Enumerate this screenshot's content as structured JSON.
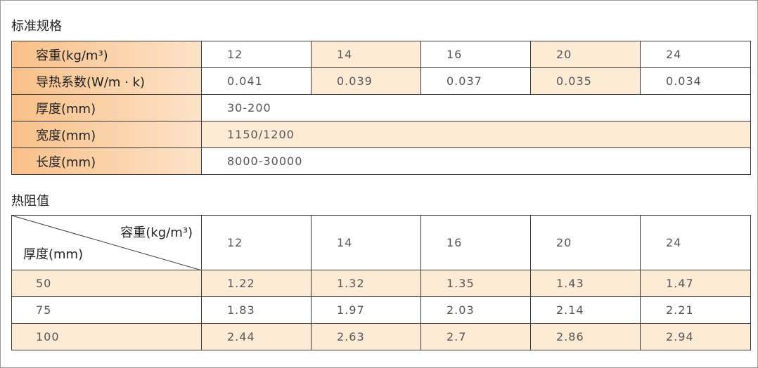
{
  "spec": {
    "title": "标准规格",
    "rows": [
      {
        "label": "容重(kg/m³)",
        "values": [
          "12",
          "14",
          "16",
          "20",
          "24"
        ]
      },
      {
        "label": "导热系数(W/m · k)",
        "values": [
          "0.041",
          "0.039",
          "0.037",
          "0.035",
          "0.034"
        ]
      },
      {
        "label": "厚度(mm)",
        "values": [
          "30-200"
        ]
      },
      {
        "label": "宽度(mm)",
        "values": [
          "1150/1200"
        ]
      },
      {
        "label": "长度(mm)",
        "values": [
          "8000-30000"
        ]
      }
    ]
  },
  "resistance": {
    "title": "热阻值",
    "corner_top": "容重(kg/m³)",
    "corner_bottom": "厚度(mm)",
    "columns": [
      "12",
      "14",
      "16",
      "20",
      "24"
    ],
    "rows": [
      {
        "label": "50",
        "values": [
          "1.22",
          "1.32",
          "1.35",
          "1.43",
          "1.47"
        ]
      },
      {
        "label": "75",
        "values": [
          "1.83",
          "1.97",
          "2.03",
          "2.14",
          "2.21"
        ]
      },
      {
        "label": "100",
        "values": [
          "2.44",
          "2.63",
          "2.7",
          "2.86",
          "2.94"
        ]
      }
    ]
  }
}
